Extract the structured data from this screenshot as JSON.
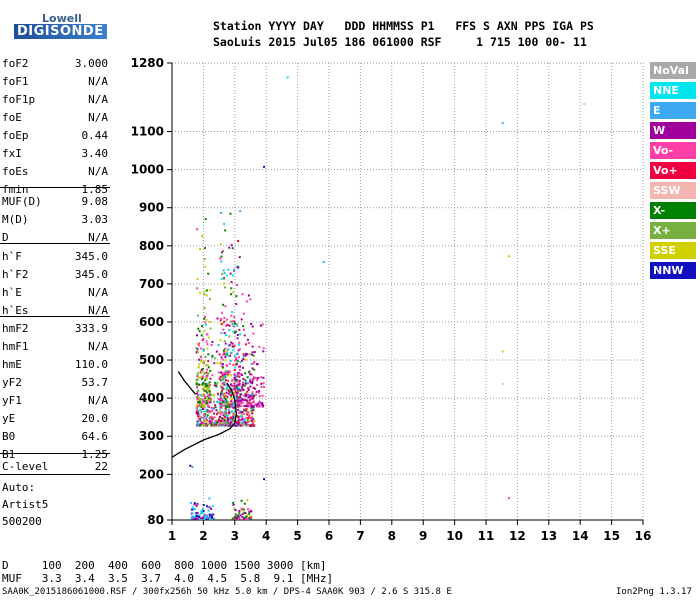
{
  "logo": {
    "top": "Lowell",
    "bottom": "DIGISONDE"
  },
  "header": {
    "line1": "Station YYYY DAY   DDD HHMMSS P1   FFS S AXN PPS IGA PS",
    "line2": "SaoLuis 2015 Jul05 186 061000 RSF     1 715 100 00- 11"
  },
  "params": [
    {
      "name": "foF2",
      "value": "3.000"
    },
    {
      "name": "foF1",
      "value": "N/A"
    },
    {
      "name": "foF1p",
      "value": "N/A"
    },
    {
      "name": "foE",
      "value": "N/A"
    },
    {
      "name": "foEp",
      "value": "0.44"
    },
    {
      "name": "fxI",
      "value": "3.40"
    },
    {
      "name": "foEs",
      "value": "N/A"
    },
    {
      "name": "fmin",
      "value": "1.85"
    },
    {
      "name": "MUF(D)",
      "value": "9.08"
    },
    {
      "name": "M(D)",
      "value": "3.03"
    },
    {
      "name": "D",
      "value": "N/A"
    },
    {
      "name": "h`F",
      "value": "345.0"
    },
    {
      "name": "h`F2",
      "value": "345.0"
    },
    {
      "name": "h`E",
      "value": "N/A"
    },
    {
      "name": "h`Es",
      "value": "N/A"
    },
    {
      "name": "hmF2",
      "value": "333.9"
    },
    {
      "name": "hmF1",
      "value": "N/A"
    },
    {
      "name": "hmE",
      "value": "110.0"
    },
    {
      "name": "yF2",
      "value": "53.7"
    },
    {
      "name": "yF1",
      "value": "N/A"
    },
    {
      "name": "yE",
      "value": "20.0"
    },
    {
      "name": "B0",
      "value": "64.6"
    },
    {
      "name": "B1",
      "value": "1.25"
    },
    {
      "name": "C-level",
      "value": "22"
    }
  ],
  "autoscale": [
    "Auto:",
    "Artist5",
    "500200"
  ],
  "legend": [
    {
      "label": "NoVal",
      "color": "#a9a9a9"
    },
    {
      "label": "NNE",
      "color": "#00e5ee"
    },
    {
      "label": "E",
      "color": "#3ea9f0"
    },
    {
      "label": "W",
      "color": "#a0009c"
    },
    {
      "label": "Vo-",
      "color": "#ff3fa8"
    },
    {
      "label": "Vo+",
      "color": "#f00040"
    },
    {
      "label": "SSW",
      "color": "#f5b5b0"
    },
    {
      "label": "X-",
      "color": "#008000"
    },
    {
      "label": "X+",
      "color": "#78b040"
    },
    {
      "label": "SSE",
      "color": "#d0d000"
    },
    {
      "label": "NNW",
      "color": "#1010c0"
    }
  ],
  "chart_data": {
    "type": "scatter",
    "xlabel": "",
    "ylabel": "",
    "xlim": [
      1,
      16
    ],
    "ylim": [
      80,
      1280
    ],
    "xticks": [
      1,
      2,
      3,
      4,
      5,
      6,
      7,
      8,
      9,
      10,
      11,
      12,
      13,
      14,
      15,
      16
    ],
    "yticks": [
      80,
      200,
      300,
      400,
      500,
      600,
      700,
      800,
      900,
      1000,
      1100,
      1280
    ],
    "grid": "dotted",
    "points": [
      {
        "x": 4.65,
        "y": 1245,
        "color": "#00e5ee"
      },
      {
        "x": 11.5,
        "y": 1125,
        "color": "#3ea9f0"
      },
      {
        "x": 14.1,
        "y": 1175,
        "color": "#f5b5b0"
      },
      {
        "x": 5.8,
        "y": 760,
        "color": "#3ea9f0"
      },
      {
        "x": 11.7,
        "y": 775,
        "color": "#d0d000"
      },
      {
        "x": 11.5,
        "y": 525,
        "color": "#d0d000"
      },
      {
        "x": 11.5,
        "y": 440,
        "color": "#f5b5b0"
      },
      {
        "x": 11.7,
        "y": 140,
        "color": "#ff3fa8"
      },
      {
        "x": 3.9,
        "y": 1010,
        "color": "#1010c0"
      },
      {
        "x": 3.9,
        "y": 190,
        "color": "#1010c0"
      },
      {
        "x": 1.6,
        "y": 110,
        "color": "#a0009c"
      },
      {
        "x": 1.55,
        "y": 225,
        "color": "#1010c0"
      },
      {
        "x": 1.62,
        "y": 222,
        "color": "#3ea9f0"
      }
    ],
    "profile_curve": {
      "x": [
        1.0,
        1.4,
        2.0,
        2.5,
        2.85,
        3.0,
        3.05,
        3.0,
        2.9,
        2.75
      ],
      "y": [
        245,
        265,
        290,
        305,
        320,
        335,
        360,
        395,
        420,
        440
      ]
    },
    "trace_curve": {
      "x": [
        1.2,
        1.4,
        1.6,
        1.75
      ],
      "y": [
        470,
        445,
        425,
        410
      ]
    }
  },
  "footer": {
    "d_row": "D     100  200  400  600  800 1000 1500 3000 [km]",
    "muf_row": "MUF   3.3  3.4  3.5  3.7  4.0  4.5  5.8  9.1 [MHz]",
    "file": "SAA0K_2015186061000.RSF / 300fx256h 50 kHz 5.0 km / DPS-4 SAA0K 903 / 2.6 S 315.8 E",
    "version": "Ion2Png 1.3.17"
  }
}
